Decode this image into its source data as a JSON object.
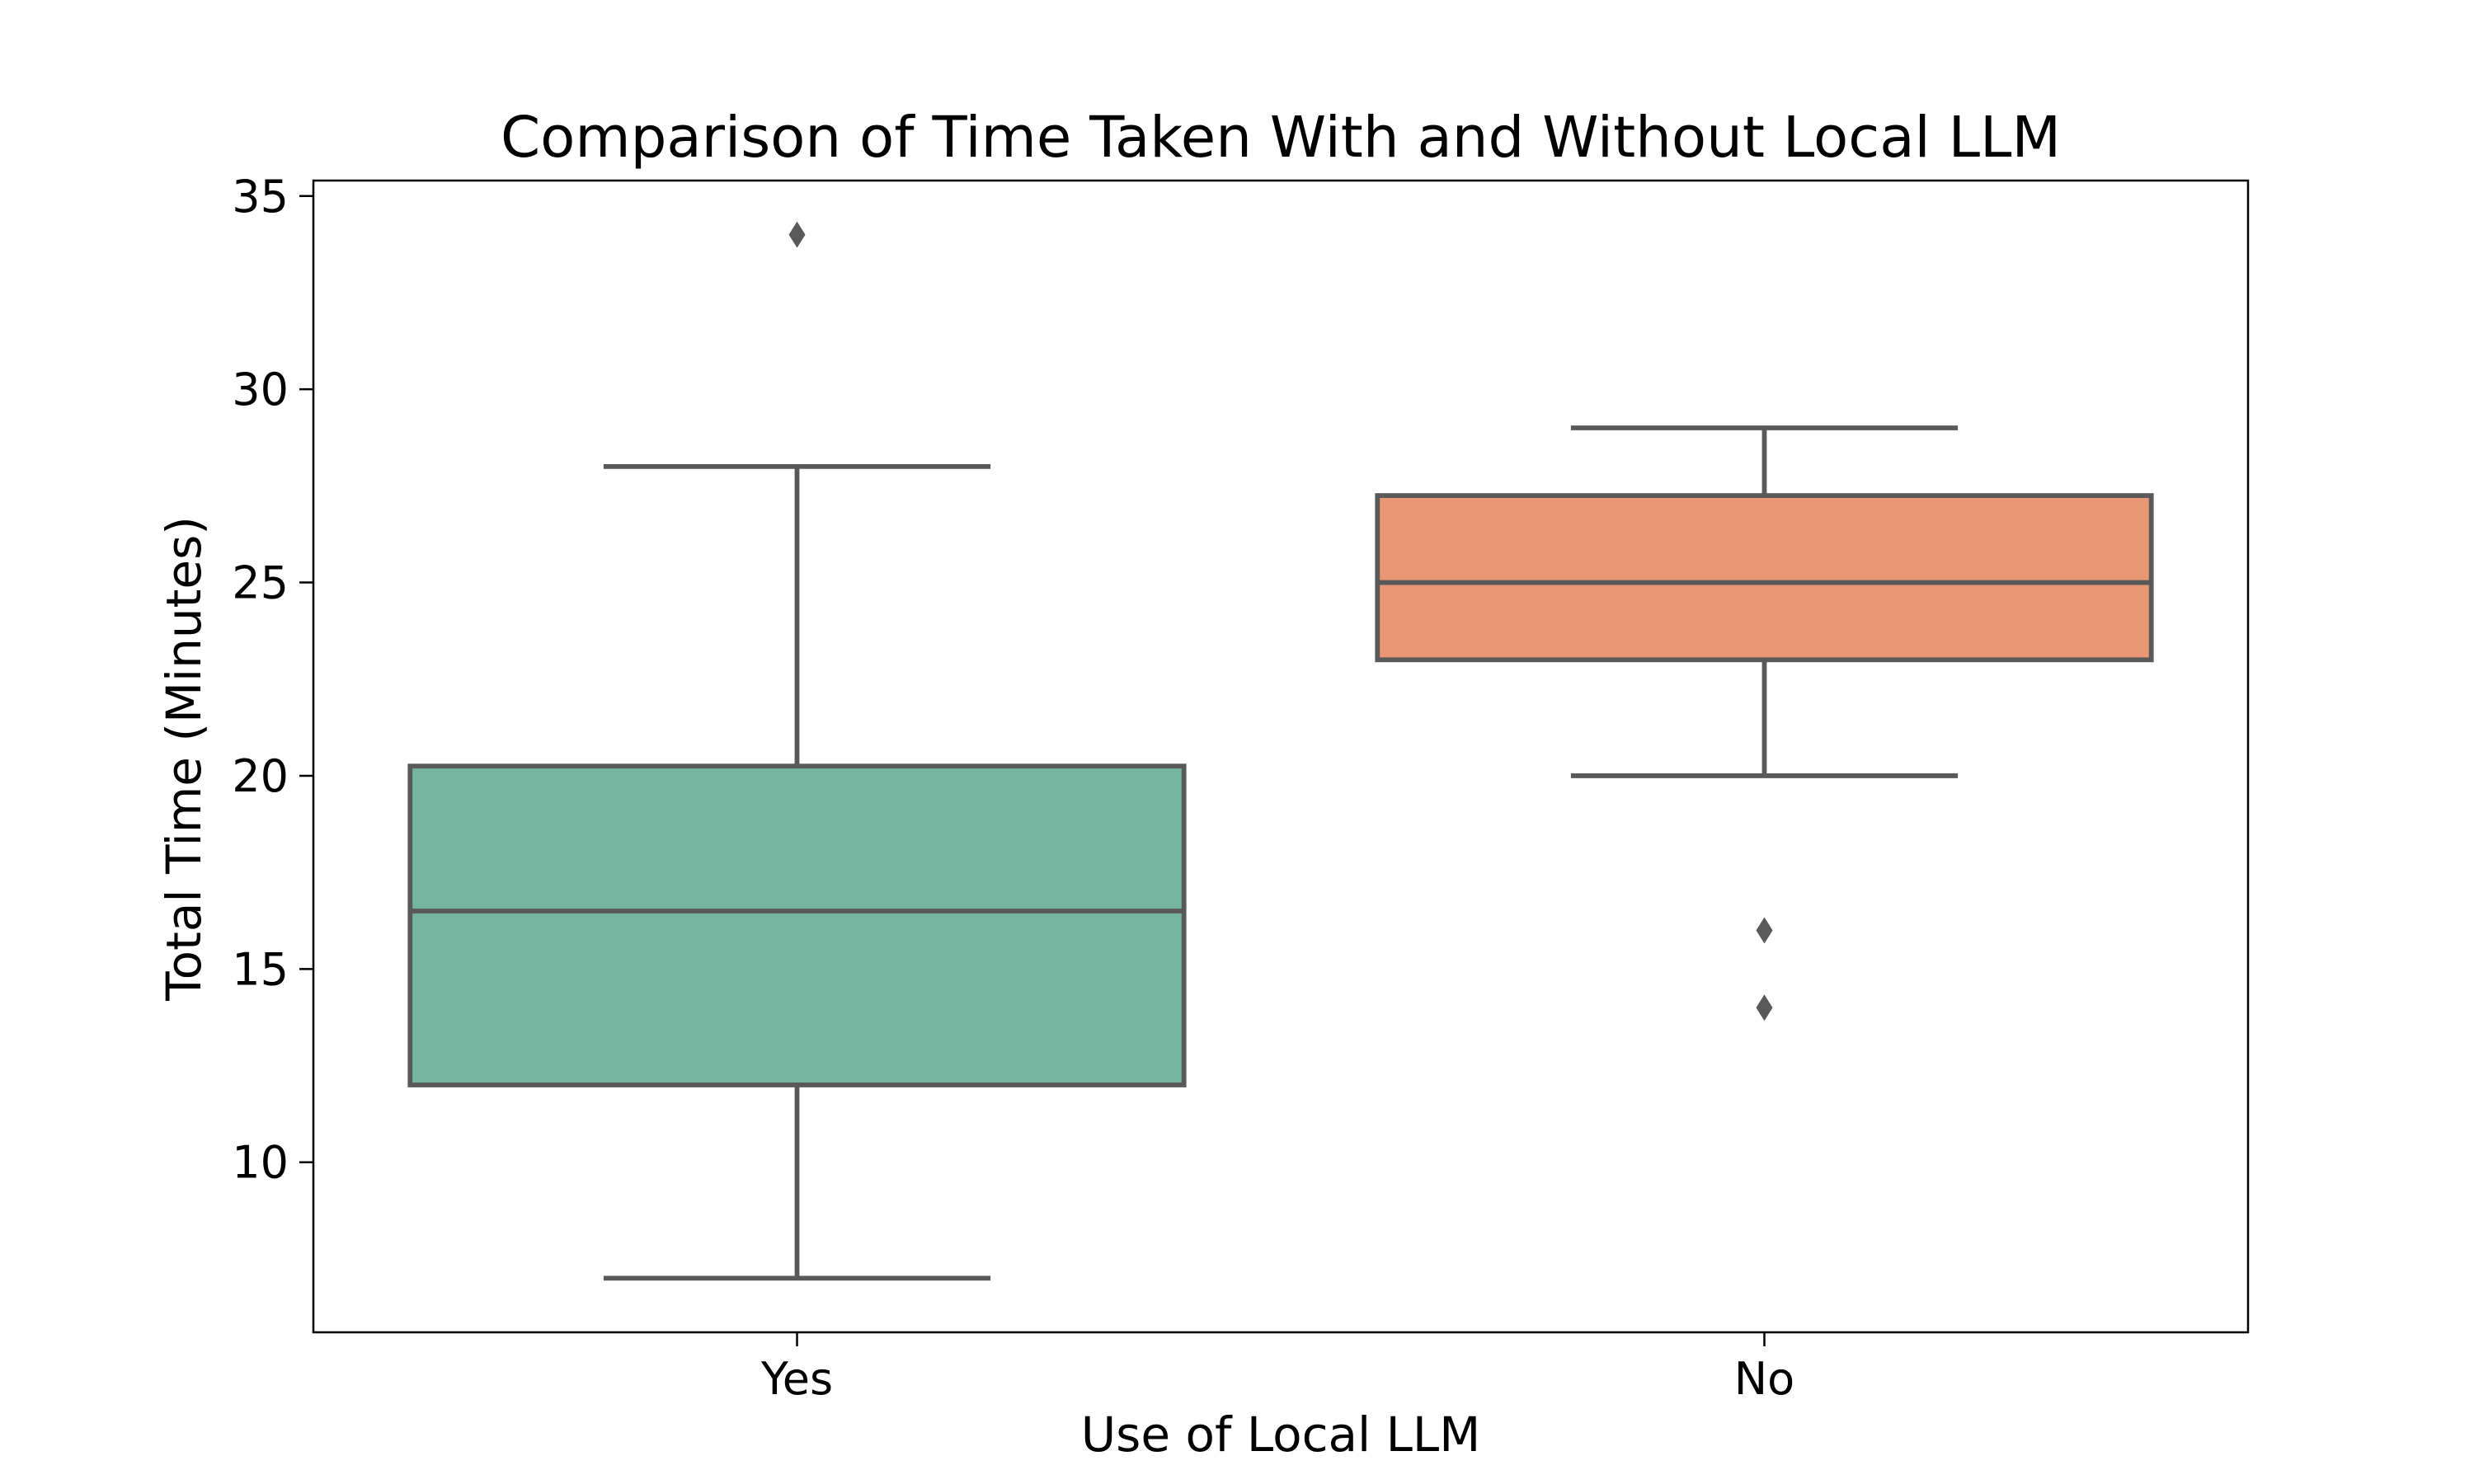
{
  "chart_data": {
    "type": "box",
    "title": "Comparison of Time Taken With and Without Local LLM",
    "xlabel": "Use of Local LLM",
    "ylabel": "Total Time (Minutes)",
    "categories": [
      "Yes",
      "No"
    ],
    "ylim": [
      5.6,
      35.4
    ],
    "yticks": [
      10,
      15,
      20,
      25,
      30,
      35
    ],
    "grid": false,
    "line_color": "#595959",
    "outlier_color": "#595959",
    "boxes": [
      {
        "category": "Yes",
        "color": "#75B5A0",
        "whisker_low": 7,
        "q1": 12,
        "median": 16.5,
        "q3": 20.25,
        "whisker_high": 28,
        "outliers": [
          34
        ]
      },
      {
        "category": "No",
        "color": "#E89674",
        "whisker_low": 20,
        "q1": 23,
        "median": 25,
        "q3": 27.25,
        "whisker_high": 29,
        "outliers": [
          16,
          14
        ]
      }
    ]
  }
}
